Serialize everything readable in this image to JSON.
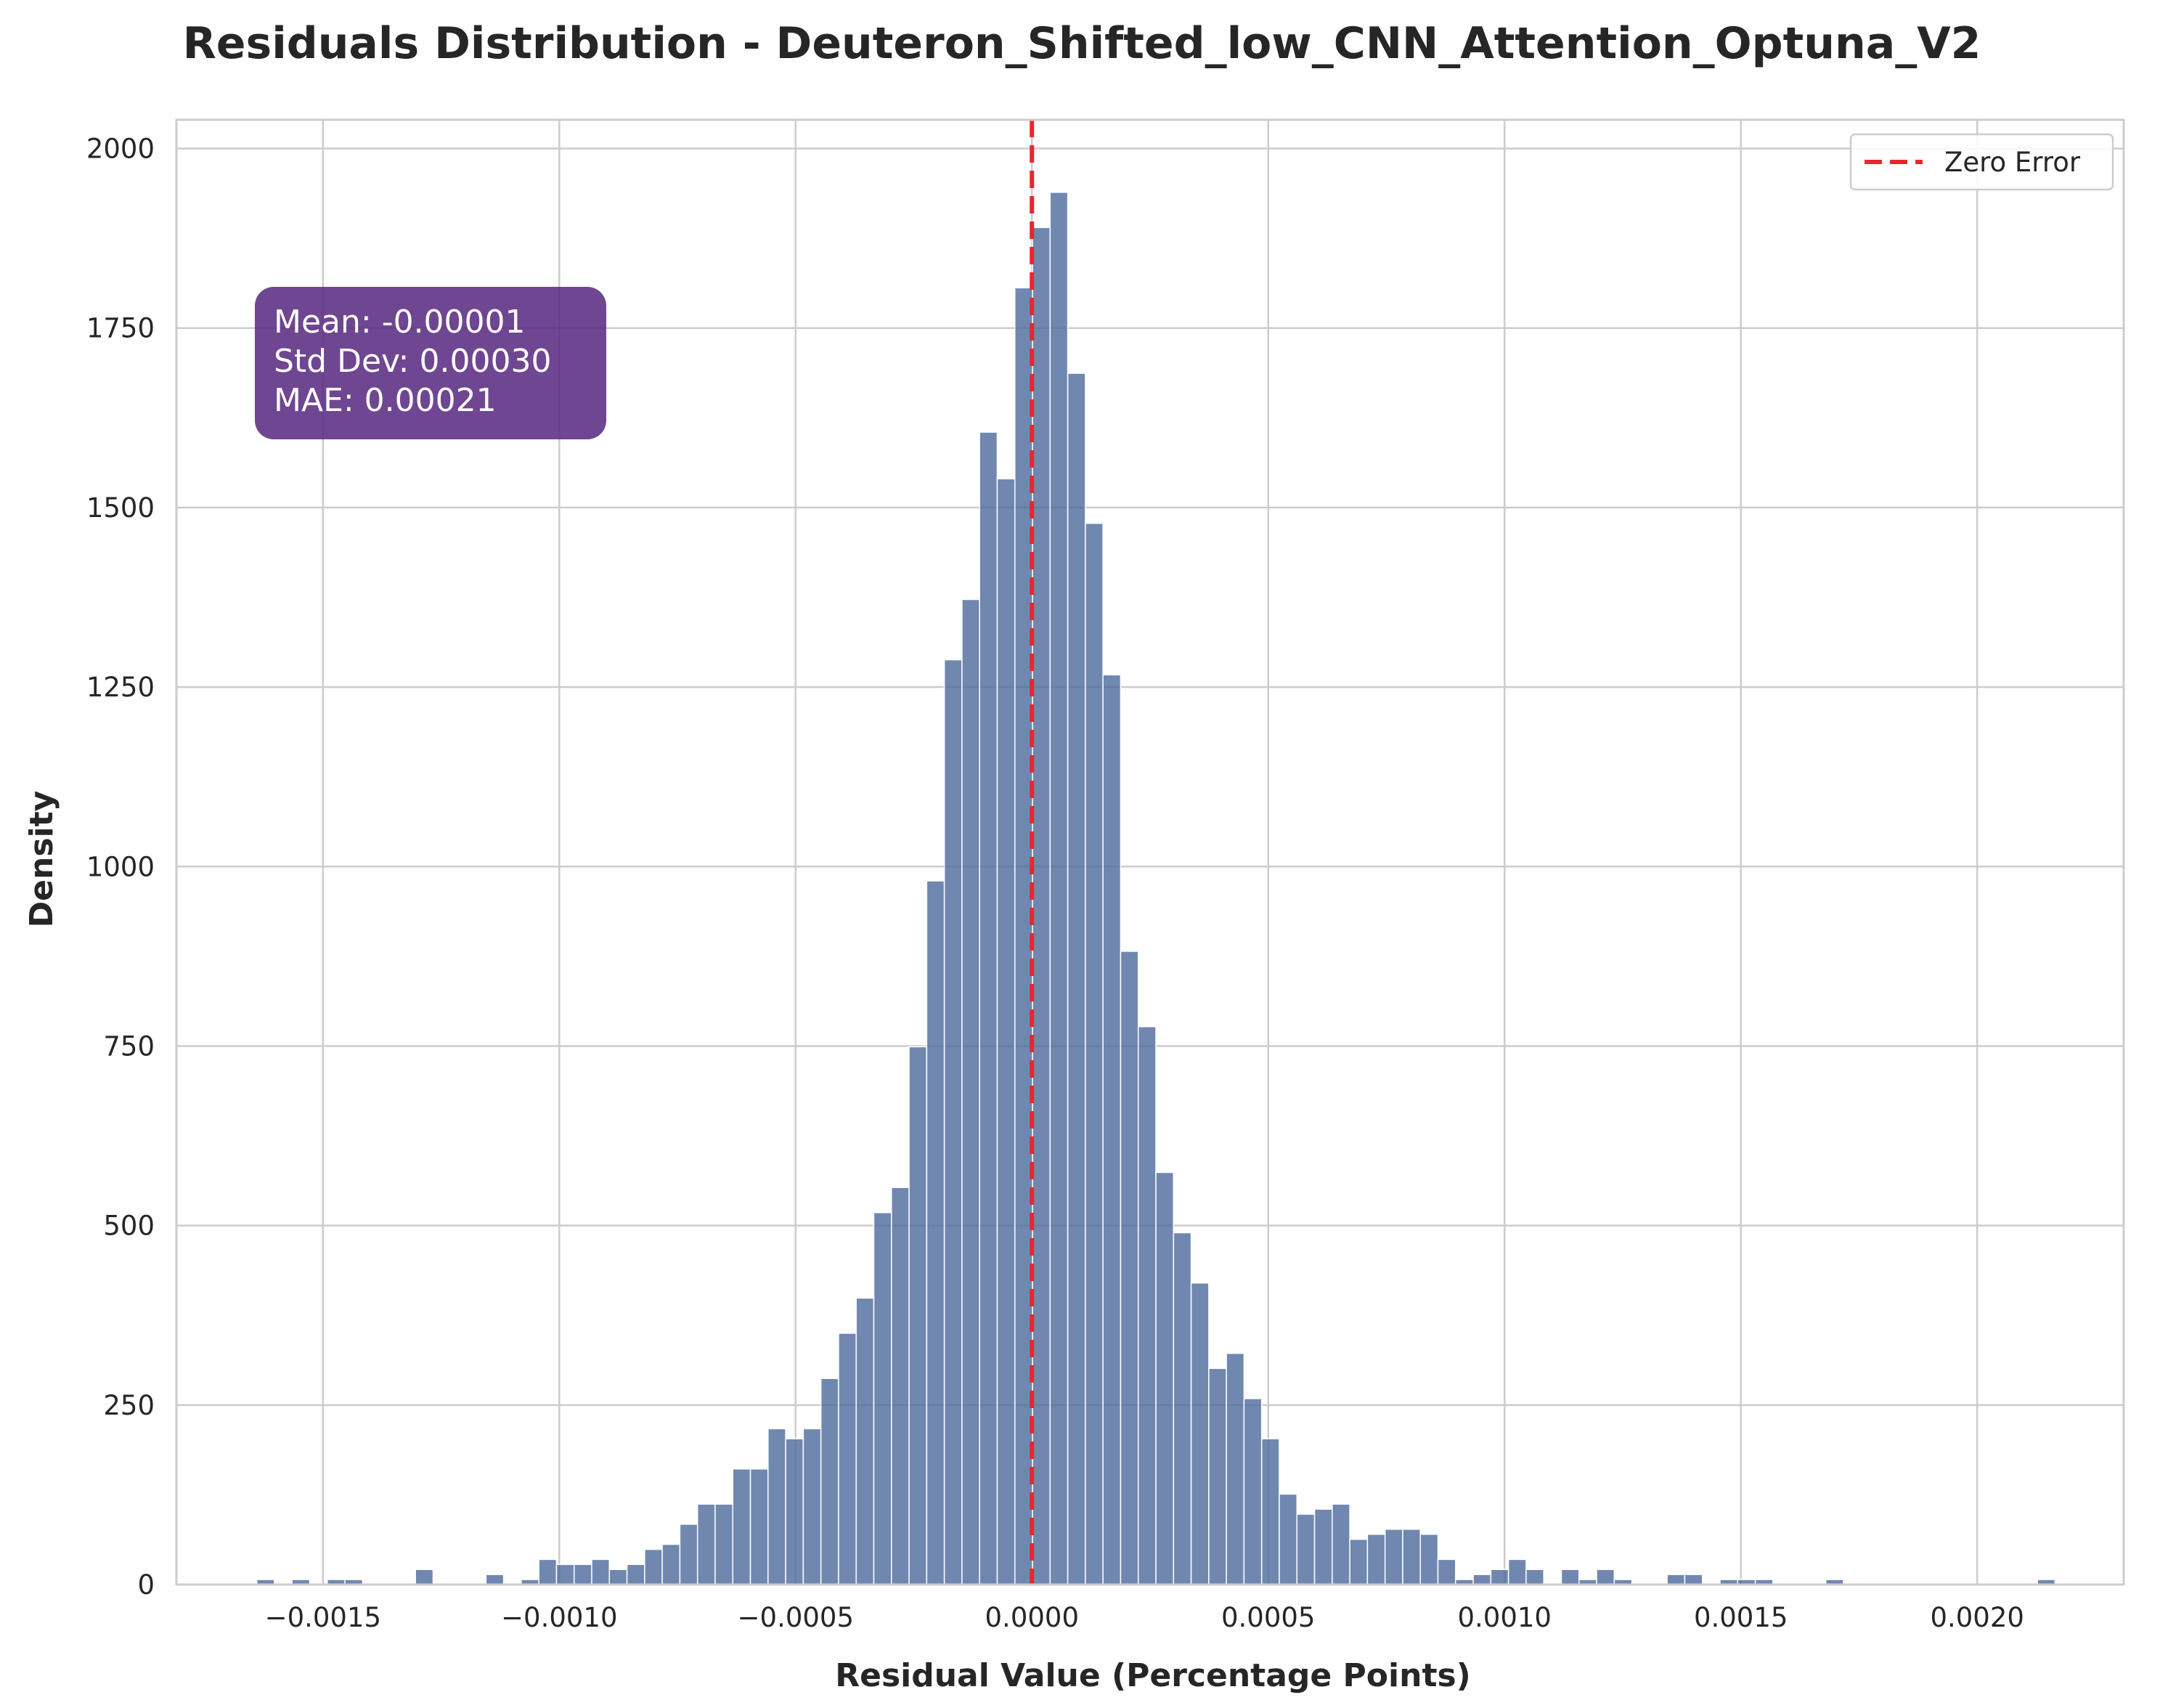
{
  "chart_data": {
    "type": "bar",
    "title": "Residuals Distribution - Deuteron_Shifted_low_CNN_Attention_Optuna_V2",
    "xlabel": "Residual Value (Percentage Points)",
    "ylabel": "Density",
    "xlim": [
      -0.00181,
      0.00231
    ],
    "ylim": [
      0,
      2040
    ],
    "bin_start": -0.00164,
    "bin_width": 3.73e-05,
    "xticks": [
      -0.0015,
      -0.001,
      -0.0005,
      0.0,
      0.0005,
      0.001,
      0.0015,
      0.002
    ],
    "xtick_labels": [
      "−0.0015",
      "−0.0010",
      "−0.0005",
      "0.0000",
      "0.0005",
      "0.0010",
      "0.0015",
      "0.0020"
    ],
    "yticks": [
      0,
      250,
      500,
      750,
      1000,
      1250,
      1500,
      1750,
      2000
    ],
    "ytick_labels": [
      "0",
      "250",
      "500",
      "750",
      "1000",
      "1250",
      "1500",
      "1750",
      "2000"
    ],
    "values": [
      7,
      0,
      7,
      0,
      7,
      7,
      0,
      0,
      0,
      21,
      0,
      0,
      0,
      14,
      0,
      7,
      35,
      28,
      28,
      35,
      21,
      28,
      49,
      56,
      84,
      112,
      112,
      161,
      161,
      217,
      203,
      217,
      287,
      350,
      399,
      518,
      553,
      749,
      980,
      1288,
      1372,
      1605,
      1540,
      1806,
      1890,
      1939,
      1687,
      1478,
      1267,
      882,
      777,
      574,
      490,
      420,
      301,
      322,
      259,
      203,
      126,
      98,
      105,
      112,
      63,
      70,
      77,
      77,
      70,
      35,
      7,
      14,
      21,
      35,
      21,
      0,
      21,
      7,
      21,
      7,
      0,
      0,
      14,
      14,
      0,
      7,
      7,
      7,
      0,
      0,
      0,
      7,
      0,
      0,
      0,
      0,
      0,
      0,
      0,
      0,
      0,
      0,
      0,
      7
    ],
    "bar_color": "#4c6a9c",
    "vline": {
      "x": 0.0,
      "color": "#e8272e",
      "style": "dashed",
      "label": "Zero Error"
    },
    "legend": {
      "position": "top-right",
      "entries": [
        "Zero Error"
      ]
    },
    "grid": true
  },
  "stats_box": {
    "lines": [
      "Mean: -0.00001",
      "Std Dev: 0.00030",
      "MAE: 0.00021"
    ],
    "background": "#5b2c83"
  }
}
